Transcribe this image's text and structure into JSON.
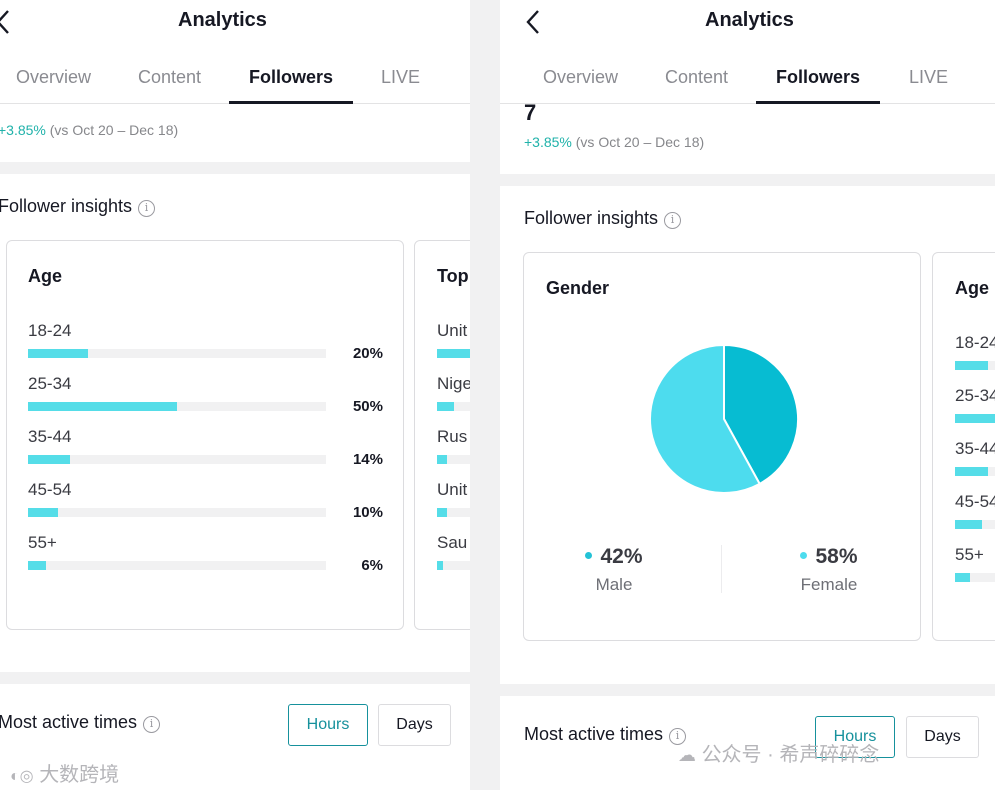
{
  "left": {
    "header": {
      "title": "Analytics"
    },
    "tabs": [
      "Overview",
      "Content",
      "Followers",
      "LIVE"
    ],
    "active_tab": "Followers",
    "summary": {
      "delta": "+3.85%",
      "compare": "(vs Oct 20 – Dec 18)"
    },
    "insights_title": "Follower insights",
    "age_card": {
      "title": "Age",
      "rows": [
        {
          "label": "18-24",
          "pct": "20%",
          "value": 20
        },
        {
          "label": "25-34",
          "pct": "50%",
          "value": 50
        },
        {
          "label": "35-44",
          "pct": "14%",
          "value": 14
        },
        {
          "label": "45-54",
          "pct": "10%",
          "value": 10
        },
        {
          "label": "55+",
          "pct": "6%",
          "value": 6
        }
      ]
    },
    "top_card": {
      "title": "Top",
      "rows": [
        {
          "label": "Unit",
          "value": 0.7
        },
        {
          "label": "Nige",
          "value": 0.28
        },
        {
          "label": "Rus",
          "value": 0.16
        },
        {
          "label": "Unit",
          "value": 0.16
        },
        {
          "label": "Sau",
          "value": 0.1
        }
      ]
    },
    "active_times": {
      "title": "Most active times",
      "hours": "Hours",
      "days": "Days"
    },
    "watermark": "大数跨境"
  },
  "right": {
    "header": {
      "title": "Analytics"
    },
    "tabs": [
      "Overview",
      "Content",
      "Followers",
      "LIVE"
    ],
    "active_tab": "Followers",
    "summary": {
      "value": "7",
      "delta": "+3.85%",
      "compare": "(vs Oct 20 – Dec 18)"
    },
    "insights_title": "Follower insights",
    "gender_card": {
      "title": "Gender",
      "male": {
        "pct": "42%",
        "label": "Male",
        "value": 42
      },
      "female": {
        "pct": "58%",
        "label": "Female",
        "value": 58
      }
    },
    "age_card": {
      "title": "Age",
      "rows": [
        {
          "label": "18-24",
          "value": 0.55
        },
        {
          "label": "25-34",
          "value": 0.9
        },
        {
          "label": "35-44",
          "value": 0.55
        },
        {
          "label": "45-54",
          "value": 0.45
        },
        {
          "label": "55+",
          "value": 0.25
        }
      ]
    },
    "active_times": {
      "title": "Most active times",
      "hours": "Hours",
      "days": "Days"
    },
    "watermark": "公众号 · 希声碎碎念"
  },
  "colors": {
    "accent": "#16919c",
    "bar": "#55dde8",
    "female": "#4ddcee",
    "male": "#07bcd2",
    "positive": "#20b2aa"
  }
}
